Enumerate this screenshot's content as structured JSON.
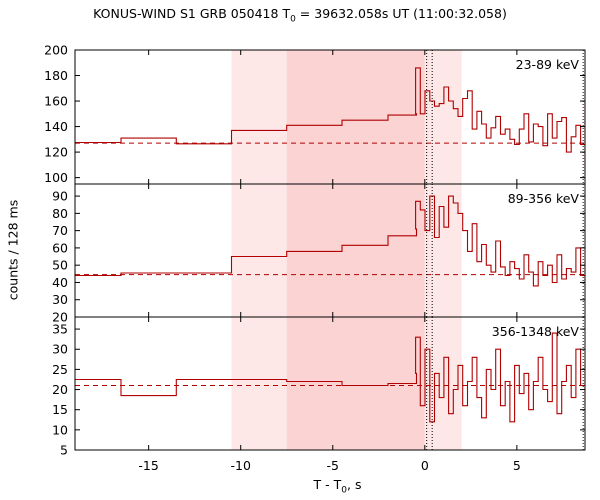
{
  "chart_data": {
    "type": "line",
    "title": {
      "instrument": "KONUS-WIND S1 GRB 050418",
      "t0_label": "T",
      "t0_sub": "0",
      "t0_value": " = 39632.058s UT (11:00:32.058)"
    },
    "xlabel": {
      "main": "T - T",
      "sub": "0",
      "unit": ", s"
    },
    "ylabel": "counts / 128 ms",
    "xlim": [
      -19,
      8.7
    ],
    "xticks": [
      -15,
      -10,
      -5,
      0,
      5
    ],
    "shaded_regions": [
      {
        "x": [
          -10.5,
          -7.5
        ],
        "color": "#fde7e7"
      },
      {
        "x": [
          -7.5,
          0
        ],
        "color": "#fbd3d3"
      },
      {
        "x": [
          0,
          2
        ],
        "color": "#fde7e7"
      }
    ],
    "dotted_lines_x": [
      0.1,
      0.4,
      8.6
    ],
    "colors": {
      "line": "#b00000",
      "background_line": "#b00000"
    },
    "panels": [
      {
        "label": "23-89 keV",
        "ylim": [
          95,
          200
        ],
        "yticks": [
          100,
          120,
          140,
          160,
          180,
          200
        ],
        "background": 127,
        "steps": [
          [
            -19,
            127.5
          ],
          [
            -16.5,
            131
          ],
          [
            -13.5,
            126.5
          ],
          [
            -10.5,
            137
          ],
          [
            -7.5,
            141
          ],
          [
            -4.5,
            145
          ],
          [
            -2,
            149
          ],
          [
            -0.45,
            150
          ]
        ],
        "noise_start": -0.5,
        "noise_end": 8.7,
        "noise_dt": 0.256,
        "noise_values": [
          186,
          150,
          168,
          160,
          156,
          158,
          171,
          160,
          154,
          148,
          162,
          168,
          138,
          152,
          142,
          131,
          139,
          148,
          134,
          138,
          130,
          126,
          138,
          150,
          128,
          142,
          140,
          125,
          150,
          131,
          144,
          147,
          120,
          132,
          141,
          126,
          118,
          133,
          136,
          104,
          144,
          130,
          160
        ]
      },
      {
        "label": "89-356 keV",
        "ylim": [
          20,
          97
        ],
        "yticks": [
          20,
          30,
          40,
          50,
          60,
          70,
          80,
          90
        ],
        "background": 44.5,
        "steps": [
          [
            -19,
            44
          ],
          [
            -16.5,
            45.5
          ],
          [
            -13.5,
            45.5
          ],
          [
            -10.5,
            55
          ],
          [
            -7.5,
            58
          ],
          [
            -4.5,
            61.5
          ],
          [
            -2,
            67
          ],
          [
            -0.45,
            71
          ]
        ],
        "noise_start": -0.5,
        "noise_end": 8.7,
        "noise_dt": 0.256,
        "noise_values": [
          87,
          82,
          70,
          90,
          66,
          84,
          72,
          90,
          86,
          80,
          70,
          58,
          74,
          52,
          62,
          50,
          46,
          64,
          49,
          44,
          52,
          48,
          42,
          56,
          46,
          38,
          52,
          44,
          50,
          40,
          56,
          42,
          48,
          46,
          60,
          44,
          50,
          38,
          52,
          44,
          48,
          42,
          47
        ]
      },
      {
        "label": "356-1348 keV",
        "ylim": [
          5,
          38
        ],
        "yticks": [
          5,
          10,
          15,
          20,
          25,
          30,
          35
        ],
        "background": 21,
        "steps": [
          [
            -19,
            22.5
          ],
          [
            -16.5,
            18.5
          ],
          [
            -13.5,
            22.5
          ],
          [
            -7.5,
            22
          ],
          [
            -4.5,
            21
          ],
          [
            -2,
            21.5
          ],
          [
            -0.45,
            24
          ]
        ],
        "noise_start": -0.5,
        "noise_end": 8.7,
        "noise_dt": 0.256,
        "noise_values": [
          33,
          16,
          30,
          12,
          24,
          18,
          28,
          14,
          20,
          26,
          16,
          22,
          28,
          18,
          13,
          25,
          20,
          30,
          16,
          22,
          12,
          26,
          19,
          24,
          15,
          22,
          28,
          20,
          17,
          34,
          14,
          22,
          26,
          18,
          30,
          21,
          16,
          24,
          19,
          22,
          26,
          18,
          24
        ]
      }
    ]
  }
}
